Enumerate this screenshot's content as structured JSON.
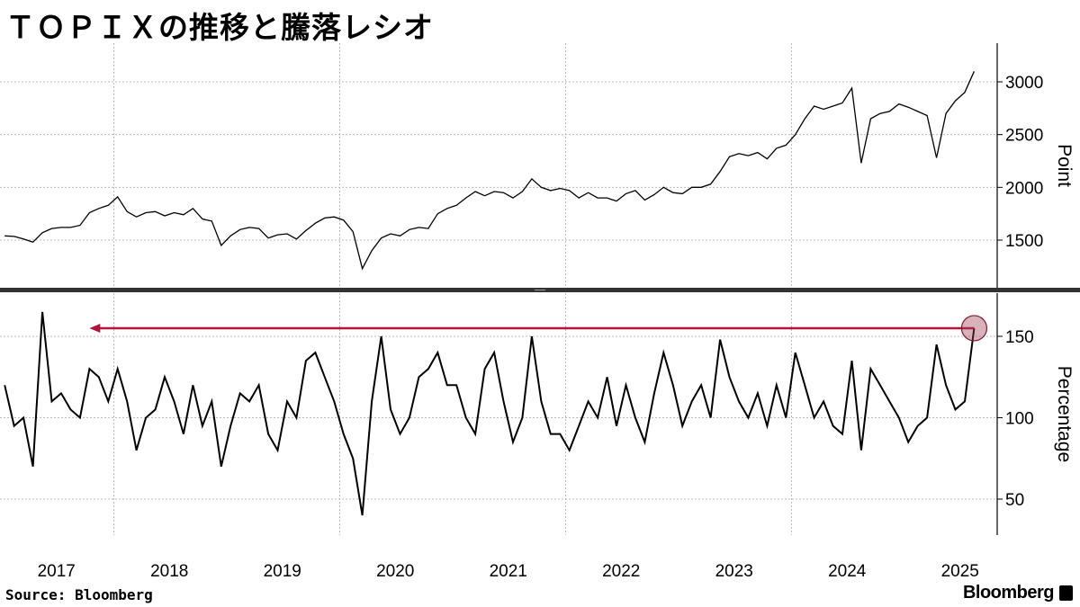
{
  "title": "ＴＯＰＩＸの推移と騰落レシオ",
  "source": "Source: Bloomberg",
  "logo": "Bloomberg",
  "chart_data": [
    {
      "type": "line",
      "ylabel": "Point",
      "ylim": [
        1100,
        3300
      ],
      "yticks": [
        1500,
        2000,
        2500,
        3000
      ],
      "grid": true,
      "color": "#000000",
      "x_start": "2017-01",
      "x_freq": "monthly",
      "values": [
        1540,
        1535,
        1510,
        1480,
        1570,
        1610,
        1620,
        1620,
        1640,
        1760,
        1800,
        1830,
        1910,
        1770,
        1720,
        1760,
        1770,
        1730,
        1760,
        1740,
        1800,
        1700,
        1680,
        1450,
        1540,
        1600,
        1620,
        1610,
        1520,
        1550,
        1560,
        1510,
        1590,
        1660,
        1710,
        1720,
        1690,
        1580,
        1230,
        1400,
        1520,
        1560,
        1540,
        1600,
        1620,
        1610,
        1750,
        1800,
        1830,
        1900,
        1960,
        1920,
        1960,
        1950,
        1900,
        1960,
        2080,
        2000,
        1970,
        1990,
        1970,
        1900,
        1950,
        1900,
        1900,
        1870,
        1940,
        1970,
        1880,
        1930,
        2000,
        1950,
        1940,
        2000,
        2000,
        2030,
        2150,
        2290,
        2320,
        2300,
        2330,
        2270,
        2370,
        2400,
        2500,
        2650,
        2770,
        2740,
        2770,
        2800,
        2940,
        2230,
        2650,
        2700,
        2720,
        2790,
        2760,
        2720,
        2680,
        2280,
        2700,
        2820,
        2900,
        3100
      ]
    },
    {
      "type": "line",
      "ylabel": "Percentage",
      "ylim": [
        28,
        178
      ],
      "yticks": [
        50,
        100,
        150
      ],
      "grid": true,
      "color": "#000000",
      "x_start": "2017-01",
      "x_freq": "monthly",
      "values": [
        120,
        95,
        100,
        70,
        165,
        110,
        115,
        105,
        100,
        130,
        125,
        110,
        130,
        110,
        80,
        100,
        105,
        125,
        110,
        90,
        120,
        95,
        110,
        70,
        95,
        115,
        110,
        120,
        90,
        80,
        110,
        100,
        135,
        140,
        125,
        110,
        90,
        75,
        40,
        110,
        150,
        105,
        90,
        100,
        125,
        130,
        140,
        120,
        120,
        100,
        90,
        130,
        140,
        110,
        85,
        100,
        150,
        110,
        90,
        90,
        80,
        95,
        110,
        100,
        125,
        95,
        120,
        100,
        85,
        115,
        140,
        120,
        95,
        110,
        120,
        100,
        148,
        125,
        110,
        100,
        115,
        95,
        120,
        100,
        140,
        120,
        100,
        110,
        95,
        90,
        135,
        80,
        130,
        120,
        110,
        100,
        85,
        95,
        100,
        145,
        120,
        105,
        110,
        155
      ],
      "annotation": {
        "type": "arrow-with-marker",
        "value": 155,
        "from": "2025-08",
        "to": "2017-10",
        "color": "#b0163a"
      }
    }
  ],
  "xaxis": {
    "tick_labels": [
      "2017",
      "2018",
      "2019",
      "2020",
      "2021",
      "2022",
      "2023",
      "2024",
      "2025"
    ]
  }
}
